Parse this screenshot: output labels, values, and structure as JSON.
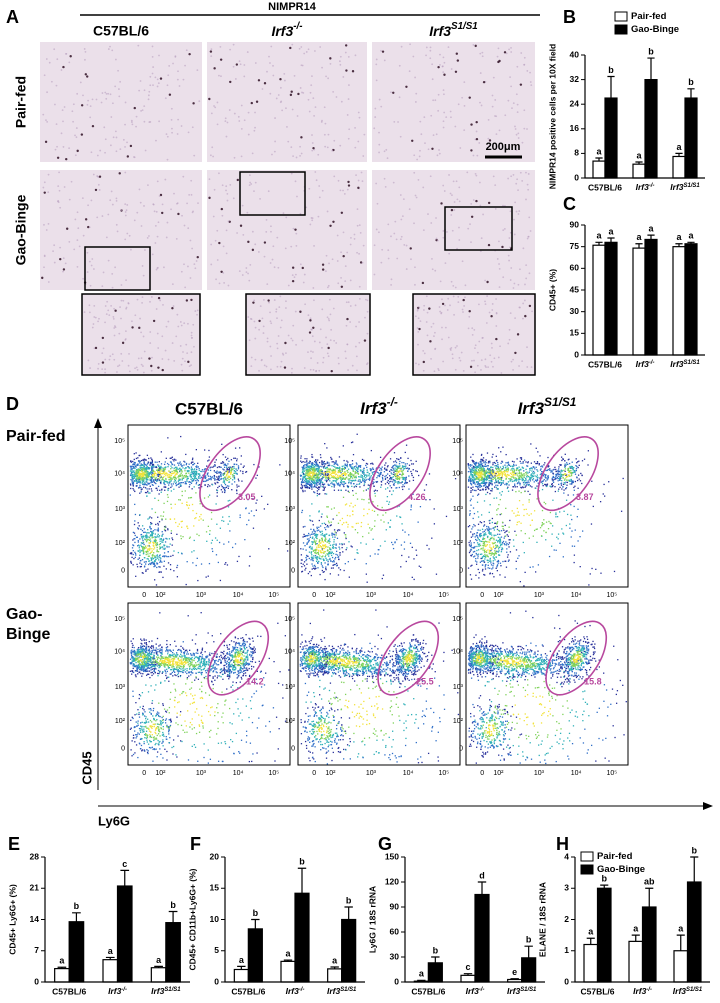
{
  "chart_data": [
    {
      "type": "bar",
      "label": "B",
      "ylabel": "NIMPR14 positive cells per 10X field",
      "categories": [
        "C57BL/6",
        "Irf3-/-",
        "Irf3S1/S1"
      ],
      "series": [
        {
          "name": "Pair-fed",
          "color": "#ffffff",
          "values": [
            5.5,
            4.5,
            7
          ],
          "errors": [
            1,
            0.7,
            1
          ],
          "letters": [
            "a",
            "a",
            "a"
          ]
        },
        {
          "name": "Gao-Binge",
          "color": "#000000",
          "values": [
            26,
            32,
            26
          ],
          "errors": [
            7,
            7,
            3
          ],
          "letters": [
            "b",
            "b",
            "b"
          ]
        }
      ],
      "ylim": [
        0,
        40
      ],
      "yticks": [
        0,
        8,
        16,
        24,
        32,
        40
      ],
      "legend": "upper right"
    },
    {
      "type": "bar",
      "label": "C",
      "ylabel": "CD45+ (%)",
      "categories": [
        "C57BL/6",
        "Irf3-/-",
        "Irf3S1/S1"
      ],
      "series": [
        {
          "name": "Pair-fed",
          "color": "#ffffff",
          "values": [
            76,
            74,
            75
          ],
          "errors": [
            2,
            3,
            2
          ],
          "letters": [
            "a",
            "a",
            "a"
          ]
        },
        {
          "name": "Gao-Binge",
          "color": "#000000",
          "values": [
            78,
            80,
            77
          ],
          "errors": [
            3,
            3,
            1
          ],
          "letters": [
            "a",
            "a",
            "a"
          ]
        }
      ],
      "ylim": [
        0,
        90
      ],
      "yticks": [
        0,
        15,
        30,
        45,
        60,
        75,
        90
      ]
    },
    {
      "type": "bar",
      "label": "E",
      "ylabel": "CD45+ Ly6G+ (%)",
      "categories": [
        "C57BL/6",
        "Irf3-/-",
        "Irf3S1/S1"
      ],
      "series": [
        {
          "name": "Pair-fed",
          "color": "#ffffff",
          "values": [
            3,
            5,
            3.2
          ],
          "errors": [
            0.3,
            0.5,
            0.3
          ],
          "letters": [
            "a",
            "a",
            "a"
          ]
        },
        {
          "name": "Gao-Binge",
          "color": "#000000",
          "values": [
            13.5,
            21.5,
            13.3
          ],
          "errors": [
            2,
            3.5,
            2.5
          ],
          "letters": [
            "b",
            "c",
            "b"
          ]
        }
      ],
      "ylim": [
        0,
        28
      ],
      "yticks": [
        0,
        7,
        14,
        21,
        28
      ]
    },
    {
      "type": "bar",
      "label": "F",
      "ylabel": "CD45+ CD11b+Ly6G+ (%)",
      "categories": [
        "C57BL/6",
        "Irf3-/-",
        "Irf3S1/S1"
      ],
      "series": [
        {
          "name": "Pair-fed",
          "color": "#ffffff",
          "values": [
            2,
            3.3,
            2.1
          ],
          "errors": [
            0.5,
            0.2,
            0.3
          ],
          "letters": [
            "a",
            "a",
            "a"
          ]
        },
        {
          "name": "Gao-Binge",
          "color": "#000000",
          "values": [
            8.5,
            14.2,
            10
          ],
          "errors": [
            1.5,
            4,
            2
          ],
          "letters": [
            "b",
            "b",
            "b"
          ]
        }
      ],
      "ylim": [
        0,
        20
      ],
      "yticks": [
        0,
        5,
        10,
        15,
        20
      ]
    },
    {
      "type": "bar",
      "label": "G",
      "ylabel": "Ly6G / 18S rRNA",
      "categories": [
        "C57BL/6",
        "Irf3-/-",
        "Irf3S1/S1"
      ],
      "series": [
        {
          "name": "Pair-fed",
          "color": "#ffffff",
          "values": [
            1,
            8,
            3
          ],
          "errors": [
            1,
            2,
            1
          ],
          "letters": [
            "a",
            "c",
            "e"
          ]
        },
        {
          "name": "Gao-Binge",
          "color": "#000000",
          "values": [
            23,
            105,
            29
          ],
          "errors": [
            7,
            15,
            14
          ],
          "letters": [
            "b",
            "d",
            "b"
          ]
        }
      ],
      "ylim": [
        0,
        150
      ],
      "yticks": [
        0,
        30,
        60,
        90,
        120,
        150
      ]
    },
    {
      "type": "bar",
      "label": "H",
      "ylabel": "ELANE / 18S rRNA",
      "categories": [
        "C57BL/6",
        "Irf3-/-",
        "Irf3S1/S1"
      ],
      "series": [
        {
          "name": "Pair-fed",
          "color": "#ffffff",
          "values": [
            1.2,
            1.3,
            1.0
          ],
          "errors": [
            0.2,
            0.2,
            0.5
          ],
          "letters": [
            "a",
            "a",
            "a"
          ]
        },
        {
          "name": "Gao-Binge",
          "color": "#000000",
          "values": [
            3.0,
            2.4,
            3.2
          ],
          "errors": [
            0.1,
            0.6,
            0.8
          ],
          "letters": [
            "b",
            "ab",
            "b"
          ]
        }
      ],
      "ylim": [
        0,
        4
      ],
      "yticks": [
        0,
        1,
        2,
        3,
        4
      ],
      "legend": "upper left"
    }
  ],
  "figure": {
    "A": {
      "label": "A",
      "header": "NIMPR14",
      "columns": [
        "C57BL/6",
        "Irf3-/-",
        "Irf3S1/S1"
      ],
      "rows": [
        "Pair-fed",
        "Gao-Binge"
      ],
      "scale_bar": "200μm"
    },
    "D": {
      "label": "D",
      "columns": [
        "C57BL/6",
        "Irf3-/-",
        "Irf3S1/S1"
      ],
      "rows": [
        [
          "Pair-fed"
        ],
        [
          "Gao-",
          "Binge"
        ]
      ],
      "y_axis": "CD45",
      "x_axis": "Ly6G",
      "ticks": [
        "0",
        "10²",
        "10³",
        "10⁴",
        "10⁵"
      ],
      "gates": [
        [
          3.05,
          4.26,
          3.87
        ],
        [
          14.2,
          25.5,
          15.8
        ]
      ]
    }
  }
}
